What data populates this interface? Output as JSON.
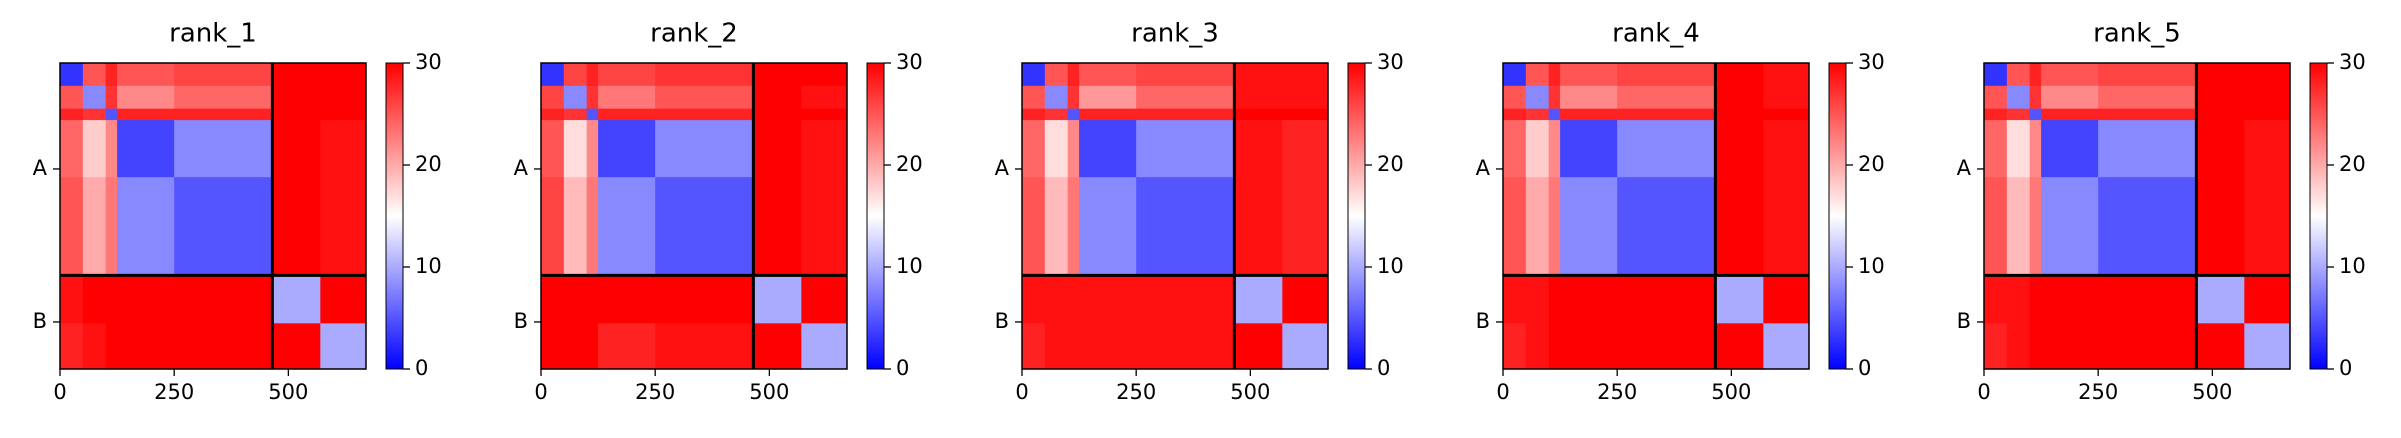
{
  "chart_data": [
    {
      "type": "heatmap",
      "title": "rank_1",
      "x": [
        0,
        50,
        100,
        125,
        250,
        465,
        570,
        670
      ],
      "z": [
        [
          3,
          25,
          28,
          25,
          26,
          30,
          30
        ],
        [
          25,
          8,
          27,
          22,
          24,
          30,
          30
        ],
        [
          28,
          27,
          5,
          28,
          28,
          30,
          30
        ],
        [
          24,
          18,
          22,
          4,
          8,
          30,
          29
        ],
        [
          25,
          20,
          23,
          8,
          5,
          30,
          29
        ],
        [
          29,
          30,
          30,
          30,
          30,
          10,
          30
        ],
        [
          28,
          29,
          30,
          30,
          30,
          30,
          10
        ]
      ],
      "xlim": [
        0,
        670
      ],
      "ylim": [
        670,
        0
      ],
      "xticks": [
        0,
        250,
        500
      ],
      "yticks": [
        {
          "value": 232,
          "label": "A"
        },
        {
          "value": 567,
          "label": "B"
        }
      ],
      "chain_breaks": [
        465
      ],
      "clim": [
        0,
        30
      ],
      "cticks": [
        0,
        10,
        20,
        30
      ],
      "colors": [
        "#0000ff",
        "#ffffff",
        "#ff0000"
      ]
    },
    {
      "type": "heatmap",
      "title": "rank_2",
      "x": [
        0,
        50,
        100,
        125,
        250,
        465,
        570,
        670
      ],
      "z": [
        [
          3,
          26,
          28,
          26,
          27,
          30,
          30
        ],
        [
          26,
          8,
          27,
          23,
          25,
          30,
          29
        ],
        [
          28,
          27,
          5,
          28,
          28,
          30,
          30
        ],
        [
          25,
          17,
          22,
          4,
          8,
          30,
          29
        ],
        [
          26,
          19,
          23,
          8,
          5,
          30,
          29
        ],
        [
          30,
          30,
          30,
          30,
          30,
          10,
          30
        ],
        [
          30,
          30,
          30,
          28,
          29,
          30,
          10
        ]
      ],
      "xlim": [
        0,
        670
      ],
      "ylim": [
        670,
        0
      ],
      "xticks": [
        0,
        250,
        500
      ],
      "yticks": [
        {
          "value": 232,
          "label": "A"
        },
        {
          "value": 567,
          "label": "B"
        }
      ],
      "chain_breaks": [
        465
      ],
      "clim": [
        0,
        30
      ],
      "cticks": [
        0,
        10,
        20,
        30
      ],
      "colors": [
        "#0000ff",
        "#ffffff",
        "#ff0000"
      ]
    },
    {
      "type": "heatmap",
      "title": "rank_3",
      "x": [
        0,
        50,
        100,
        125,
        250,
        465,
        570,
        670
      ],
      "z": [
        [
          3,
          25,
          28,
          25,
          26,
          29,
          29
        ],
        [
          25,
          8,
          27,
          21,
          24,
          29,
          29
        ],
        [
          28,
          27,
          5,
          28,
          28,
          30,
          30
        ],
        [
          24,
          17,
          22,
          4,
          8,
          29,
          28
        ],
        [
          25,
          19,
          23,
          8,
          5,
          29,
          28
        ],
        [
          29,
          29,
          29,
          29,
          29,
          10,
          30
        ],
        [
          28,
          29,
          29,
          29,
          29,
          30,
          10
        ]
      ],
      "xlim": [
        0,
        670
      ],
      "ylim": [
        670,
        0
      ],
      "xticks": [
        0,
        250,
        500
      ],
      "yticks": [
        {
          "value": 232,
          "label": "A"
        },
        {
          "value": 567,
          "label": "B"
        }
      ],
      "chain_breaks": [
        465
      ],
      "clim": [
        0,
        30
      ],
      "cticks": [
        0,
        10,
        20,
        30
      ],
      "colors": [
        "#0000ff",
        "#ffffff",
        "#ff0000"
      ]
    },
    {
      "type": "heatmap",
      "title": "rank_4",
      "x": [
        0,
        50,
        100,
        125,
        250,
        465,
        570,
        670
      ],
      "z": [
        [
          3,
          25,
          28,
          25,
          26,
          30,
          29
        ],
        [
          25,
          8,
          27,
          22,
          24,
          30,
          29
        ],
        [
          28,
          27,
          5,
          28,
          28,
          30,
          30
        ],
        [
          24,
          18,
          22,
          4,
          8,
          30,
          29
        ],
        [
          25,
          20,
          23,
          8,
          5,
          30,
          29
        ],
        [
          29,
          29,
          30,
          30,
          30,
          10,
          30
        ],
        [
          28,
          29,
          30,
          30,
          30,
          30,
          10
        ]
      ],
      "xlim": [
        0,
        670
      ],
      "ylim": [
        670,
        0
      ],
      "xticks": [
        0,
        250,
        500
      ],
      "yticks": [
        {
          "value": 232,
          "label": "A"
        },
        {
          "value": 567,
          "label": "B"
        }
      ],
      "chain_breaks": [
        465
      ],
      "clim": [
        0,
        30
      ],
      "cticks": [
        0,
        10,
        20,
        30
      ],
      "colors": [
        "#0000ff",
        "#ffffff",
        "#ff0000"
      ]
    },
    {
      "type": "heatmap",
      "title": "rank_5",
      "x": [
        0,
        50,
        100,
        125,
        250,
        465,
        570,
        670
      ],
      "z": [
        [
          3,
          25,
          28,
          25,
          26,
          30,
          30
        ],
        [
          25,
          8,
          27,
          22,
          24,
          30,
          30
        ],
        [
          28,
          27,
          5,
          28,
          28,
          30,
          30
        ],
        [
          24,
          17,
          22,
          4,
          8,
          30,
          29
        ],
        [
          25,
          19,
          23,
          8,
          5,
          30,
          29
        ],
        [
          29,
          29,
          30,
          30,
          30,
          10,
          30
        ],
        [
          28,
          29,
          30,
          30,
          30,
          30,
          10
        ]
      ],
      "xlim": [
        0,
        670
      ],
      "ylim": [
        670,
        0
      ],
      "xticks": [
        0,
        250,
        500
      ],
      "yticks": [
        {
          "value": 232,
          "label": "A"
        },
        {
          "value": 567,
          "label": "B"
        }
      ],
      "chain_breaks": [
        465
      ],
      "clim": [
        0,
        30
      ],
      "cticks": [
        0,
        10,
        20,
        30
      ],
      "colors": [
        "#0000ff",
        "#ffffff",
        "#ff0000"
      ]
    }
  ]
}
